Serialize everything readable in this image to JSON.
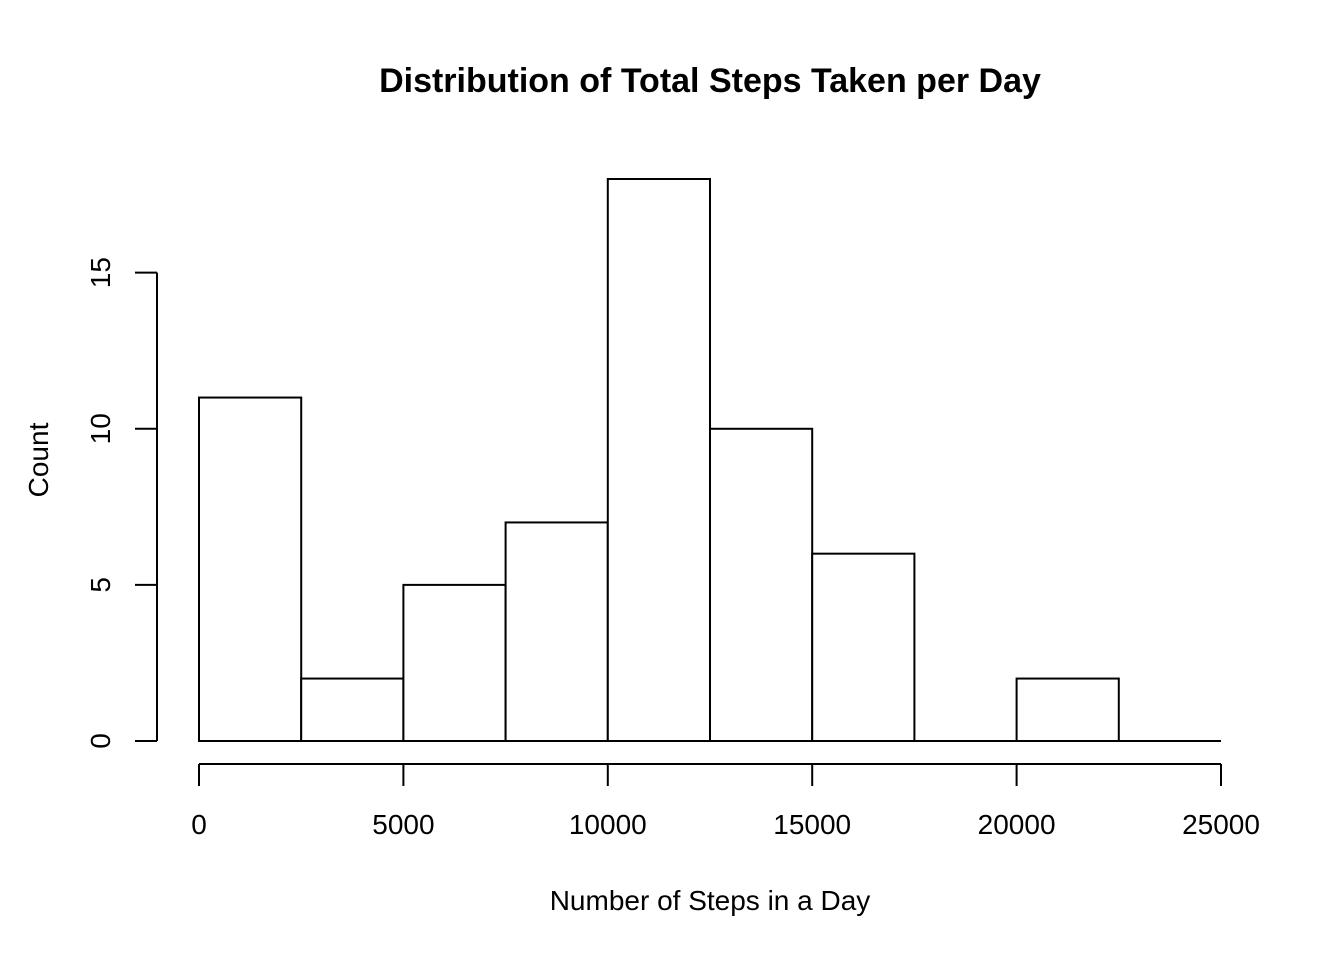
{
  "chart_data": {
    "type": "bar",
    "title": "Distribution of Total Steps Taken per Day",
    "xlabel": "Number of Steps in a Day",
    "ylabel": "Count",
    "bins": [
      {
        "from": 0,
        "to": 2500,
        "count": 11
      },
      {
        "from": 2500,
        "to": 5000,
        "count": 2
      },
      {
        "from": 5000,
        "to": 7500,
        "count": 5
      },
      {
        "from": 7500,
        "to": 10000,
        "count": 7
      },
      {
        "from": 10000,
        "to": 12500,
        "count": 18
      },
      {
        "from": 12500,
        "to": 15000,
        "count": 10
      },
      {
        "from": 15000,
        "to": 17500,
        "count": 6
      },
      {
        "from": 17500,
        "to": 20000,
        "count": 0
      },
      {
        "from": 20000,
        "to": 22500,
        "count": 2
      },
      {
        "from": 22500,
        "to": 25000,
        "count": 0
      }
    ],
    "xlim": [
      0,
      25000
    ],
    "ylim": [
      0,
      18
    ],
    "x_ticks": [
      0,
      5000,
      10000,
      15000,
      20000,
      25000
    ],
    "y_ticks": [
      0,
      5,
      10,
      15
    ],
    "grid": false,
    "bar_fill": "#ffffff",
    "bar_stroke": "#000000"
  }
}
